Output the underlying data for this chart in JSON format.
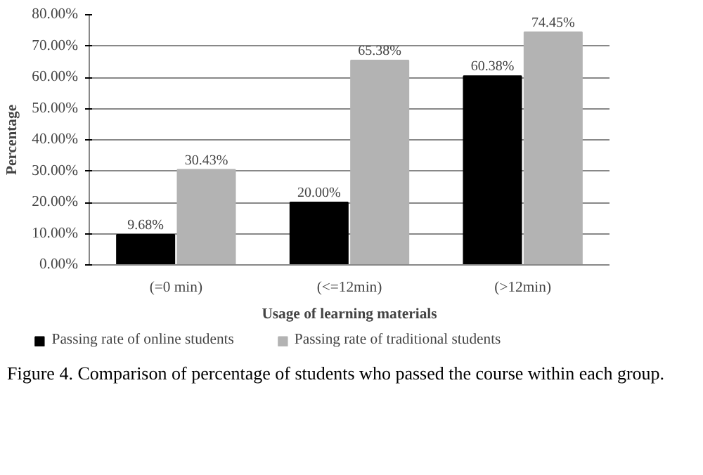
{
  "chart_data": {
    "type": "bar",
    "xlabel": "Usage of learning materials",
    "ylabel": "Percentage",
    "categories": [
      "(=0 min)",
      "(<=12min)",
      "(>12min)"
    ],
    "series": [
      {
        "name": "Passing rate of online students",
        "color": "#000000",
        "values": [
          9.68,
          20.0,
          60.38
        ],
        "value_labels": [
          "9.68%",
          "20.00%",
          "60.38%"
        ]
      },
      {
        "name": "Passing rate of traditional students",
        "color": "#b3b3b3",
        "values": [
          30.43,
          65.38,
          74.45
        ],
        "value_labels": [
          "30.43%",
          "65.38%",
          "74.45%"
        ]
      }
    ],
    "ylim": [
      0,
      80
    ],
    "yticks": [
      {
        "value": 0,
        "label": "0.00%"
      },
      {
        "value": 10,
        "label": "10.00%"
      },
      {
        "value": 20,
        "label": "20.00%"
      },
      {
        "value": 30,
        "label": "30.00%"
      },
      {
        "value": 40,
        "label": "40.00%"
      },
      {
        "value": 50,
        "label": "50.00%"
      },
      {
        "value": 60,
        "label": "60.00%"
      },
      {
        "value": 70,
        "label": "70.00%"
      },
      {
        "value": 80,
        "label": "80.00%"
      }
    ],
    "grid": "y",
    "legend": "bottom",
    "annotations": [
      "Figure 4. Comparison of percentage of students who passed the course within each group."
    ]
  }
}
